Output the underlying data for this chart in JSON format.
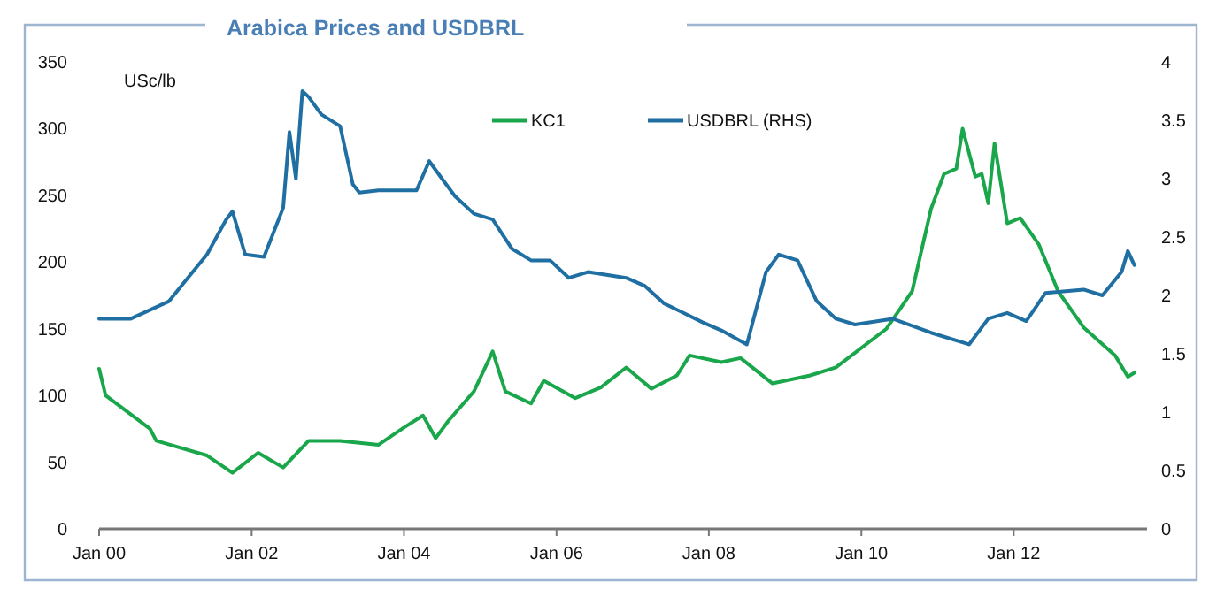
{
  "chart_data": {
    "type": "line",
    "title": "Arabica Prices and USDBRL",
    "ylabel": "USc/lb",
    "x": [
      "2000-01",
      "2000-02",
      "2000-09",
      "2000-10",
      "2001-06",
      "2001-10",
      "2002-02",
      "2002-06",
      "2002-10",
      "2003-03",
      "2003-09",
      "2004-01",
      "2004-04",
      "2004-06",
      "2004-08",
      "2004-12",
      "2005-03",
      "2005-05",
      "2005-09",
      "2005-11",
      "2006-04",
      "2006-08",
      "2006-12",
      "2007-04",
      "2007-08",
      "2007-10",
      "2008-03",
      "2008-06",
      "2008-11",
      "2009-05",
      "2009-09",
      "2010-05",
      "2010-09",
      "2010-12",
      "2011-02",
      "2011-04",
      "2011-05",
      "2011-07",
      "2011-08",
      "2011-09",
      "2011-10",
      "2011-12",
      "2012-02",
      "2012-05",
      "2012-08",
      "2012-12",
      "2013-05",
      "2013-07",
      "2013-08"
    ],
    "series": [
      {
        "name": "KC1",
        "color": "#1aa64a",
        "values": [
          120,
          100,
          75,
          66,
          55,
          42,
          57,
          46,
          66,
          66,
          63,
          76,
          85,
          68,
          81,
          103,
          133,
          103,
          94,
          111,
          98,
          106,
          121,
          105,
          115,
          130,
          125,
          128,
          109,
          115,
          121,
          150,
          178,
          240,
          266,
          270,
          300,
          264,
          266,
          244,
          289,
          229,
          233,
          213,
          178,
          151,
          130,
          114,
          117
        ]
      },
      {
        "name": "USDBRL (RHS)",
        "color": "#1f6fa3",
        "axis": "y2",
        "x": [
          "2000-01",
          "2000-06",
          "2000-12",
          "2001-03",
          "2001-06",
          "2001-09",
          "2001-10",
          "2001-12",
          "2002-03",
          "2002-06",
          "2002-07",
          "2002-08",
          "2002-09",
          "2002-10",
          "2002-12",
          "2003-03",
          "2003-05",
          "2003-06",
          "2003-09",
          "2003-12",
          "2004-03",
          "2004-05",
          "2004-07",
          "2004-09",
          "2004-12",
          "2005-03",
          "2005-06",
          "2005-09",
          "2005-12",
          "2006-03",
          "2006-06",
          "2006-12",
          "2007-03",
          "2007-06",
          "2007-09",
          "2007-12",
          "2008-03",
          "2008-07",
          "2008-10",
          "2008-12",
          "2009-03",
          "2009-06",
          "2009-09",
          "2009-12",
          "2010-06",
          "2010-12",
          "2011-06",
          "2011-09",
          "2011-12",
          "2012-03",
          "2012-06",
          "2012-12",
          "2013-03",
          "2013-06",
          "2013-07",
          "2013-08"
        ],
        "values": [
          1.8,
          1.8,
          1.95,
          2.15,
          2.35,
          2.65,
          2.72,
          2.35,
          2.33,
          2.75,
          3.4,
          3.0,
          3.75,
          3.7,
          3.55,
          3.45,
          2.95,
          2.88,
          2.9,
          2.9,
          2.9,
          3.15,
          3.0,
          2.85,
          2.7,
          2.65,
          2.4,
          2.3,
          2.3,
          2.15,
          2.2,
          2.15,
          2.08,
          1.93,
          1.85,
          1.77,
          1.7,
          1.58,
          2.2,
          2.35,
          2.3,
          1.95,
          1.8,
          1.75,
          1.8,
          1.68,
          1.58,
          1.8,
          1.85,
          1.78,
          2.02,
          2.05,
          2.0,
          2.2,
          2.38,
          2.26
        ]
      }
    ],
    "xlim": [
      "2000-01",
      "2013-10"
    ],
    "xticks": [
      {
        "value": "2000-01",
        "label": "Jan 00"
      },
      {
        "value": "2002-01",
        "label": "Jan 02"
      },
      {
        "value": "2004-01",
        "label": "Jan 04"
      },
      {
        "value": "2006-01",
        "label": "Jan 06"
      },
      {
        "value": "2008-01",
        "label": "Jan 08"
      },
      {
        "value": "2010-01",
        "label": "Jan 10"
      },
      {
        "value": "2012-01",
        "label": "Jan 12"
      }
    ],
    "ylim": [
      0,
      350
    ],
    "yticks": [
      0,
      50,
      100,
      150,
      200,
      250,
      300,
      350
    ],
    "y2lim": [
      0,
      4
    ],
    "y2ticks": [
      0,
      0.5,
      1,
      1.5,
      2,
      2.5,
      3,
      3.5,
      4
    ],
    "legend": "top",
    "grid": false
  }
}
